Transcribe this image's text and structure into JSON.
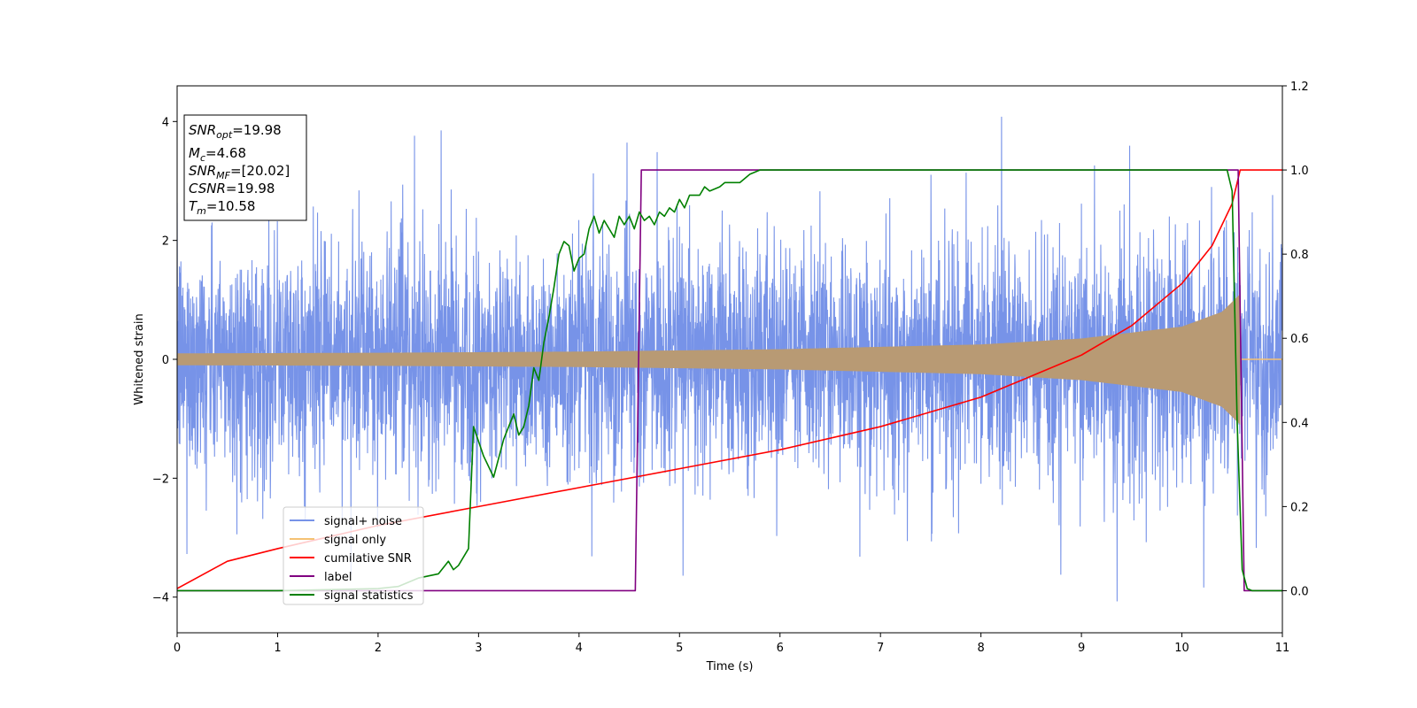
{
  "chart_data": {
    "type": "line",
    "title": "",
    "xlabel": "Time (s)",
    "ylabel": "Whitened strain",
    "y2label": "",
    "xlim": [
      0,
      11
    ],
    "ylim": [
      -4.6,
      4.6
    ],
    "y2lim": [
      -0.1,
      1.2
    ],
    "xticks": [
      "0",
      "1",
      "2",
      "3",
      "4",
      "5",
      "6",
      "7",
      "8",
      "9",
      "10",
      "11"
    ],
    "yticks": [
      "4",
      "2",
      "0",
      "−2",
      "−4"
    ],
    "y2ticks": [
      "1.2",
      "1.0",
      "0.8",
      "0.6",
      "0.4",
      "0.2",
      "0.0"
    ],
    "grid": false,
    "legend_position": "lower-left",
    "legend": [
      "signal+ noise",
      "signal only",
      "cumilative SNR",
      "label",
      "signal statistics"
    ],
    "info_box": {
      "snr_opt": {
        "base": "SNR",
        "sub": "opt",
        "value": "=19.98"
      },
      "mc": {
        "base": "M",
        "sub": "c",
        "value": "=4.68"
      },
      "snr_mf": {
        "base": "SNR",
        "sub": "MF",
        "value": "=[20.02]"
      },
      "csnr": {
        "base": "CSNR",
        "sub": "",
        "value": "=19.98"
      },
      "tm": {
        "base": "T",
        "sub": "m",
        "value": "=10.58"
      }
    },
    "series": [
      {
        "name": "signal+ noise",
        "axis": "left",
        "color": "#7793e8",
        "description_values": {
          "noise_std": 1.0,
          "peak_max": 4.2,
          "peak_min": -3.75
        }
      },
      {
        "name": "signal only",
        "axis": "left",
        "color": "#f5c273",
        "envelope": {
          "x": [
            0,
            2,
            4,
            6,
            8,
            9,
            10,
            10.4,
            10.58
          ],
          "amplitude": [
            0.1,
            0.11,
            0.13,
            0.17,
            0.25,
            0.35,
            0.55,
            0.8,
            1.1
          ]
        }
      },
      {
        "name": "cumilative SNR",
        "axis": "right",
        "color": "#ff0000",
        "x": [
          0,
          0.5,
          1,
          2,
          3,
          4,
          5,
          6,
          7,
          8,
          9,
          9.5,
          10,
          10.3,
          10.5,
          10.58,
          11
        ],
        "y": [
          0.005,
          0.07,
          0.1,
          0.155,
          0.2,
          0.245,
          0.29,
          0.335,
          0.39,
          0.46,
          0.56,
          0.63,
          0.73,
          0.82,
          0.92,
          1.0,
          1.0
        ]
      },
      {
        "name": "label",
        "axis": "right",
        "color": "#800080",
        "x": [
          0,
          4.56,
          4.62,
          10.56,
          10.62,
          11
        ],
        "y": [
          0,
          0,
          1,
          1,
          0,
          0
        ]
      },
      {
        "name": "signal statistics",
        "axis": "right",
        "color": "#008000",
        "x": [
          0,
          1,
          2,
          2.2,
          2.4,
          2.6,
          2.7,
          2.75,
          2.8,
          2.9,
          2.95,
          3.05,
          3.15,
          3.25,
          3.35,
          3.4,
          3.45,
          3.5,
          3.55,
          3.6,
          3.65,
          3.7,
          3.75,
          3.8,
          3.85,
          3.9,
          3.95,
          4.0,
          4.05,
          4.1,
          4.15,
          4.2,
          4.25,
          4.3,
          4.35,
          4.4,
          4.45,
          4.5,
          4.55,
          4.6,
          4.65,
          4.7,
          4.75,
          4.8,
          4.85,
          4.9,
          4.95,
          5.0,
          5.05,
          5.1,
          5.15,
          5.2,
          5.25,
          5.3,
          5.4,
          5.45,
          5.5,
          5.6,
          5.7,
          5.8,
          6.0,
          6.5,
          7.0,
          7.5,
          8.0,
          9.0,
          10.0,
          10.45,
          10.5,
          10.55,
          10.6,
          10.65,
          10.7,
          11.0
        ],
        "y": [
          0.0,
          0.0,
          0.005,
          0.01,
          0.03,
          0.04,
          0.07,
          0.05,
          0.06,
          0.1,
          0.39,
          0.32,
          0.27,
          0.36,
          0.42,
          0.37,
          0.39,
          0.44,
          0.53,
          0.5,
          0.59,
          0.65,
          0.72,
          0.8,
          0.83,
          0.82,
          0.76,
          0.79,
          0.8,
          0.86,
          0.89,
          0.85,
          0.88,
          0.86,
          0.84,
          0.89,
          0.87,
          0.89,
          0.86,
          0.9,
          0.88,
          0.89,
          0.87,
          0.9,
          0.89,
          0.91,
          0.9,
          0.93,
          0.91,
          0.94,
          0.94,
          0.94,
          0.96,
          0.95,
          0.96,
          0.97,
          0.97,
          0.97,
          0.99,
          1.0,
          1.0,
          1.0,
          1.0,
          1.0,
          1.0,
          1.0,
          1.0,
          1.0,
          0.95,
          0.4,
          0.05,
          0.005,
          0.0,
          0.0
        ]
      }
    ]
  }
}
